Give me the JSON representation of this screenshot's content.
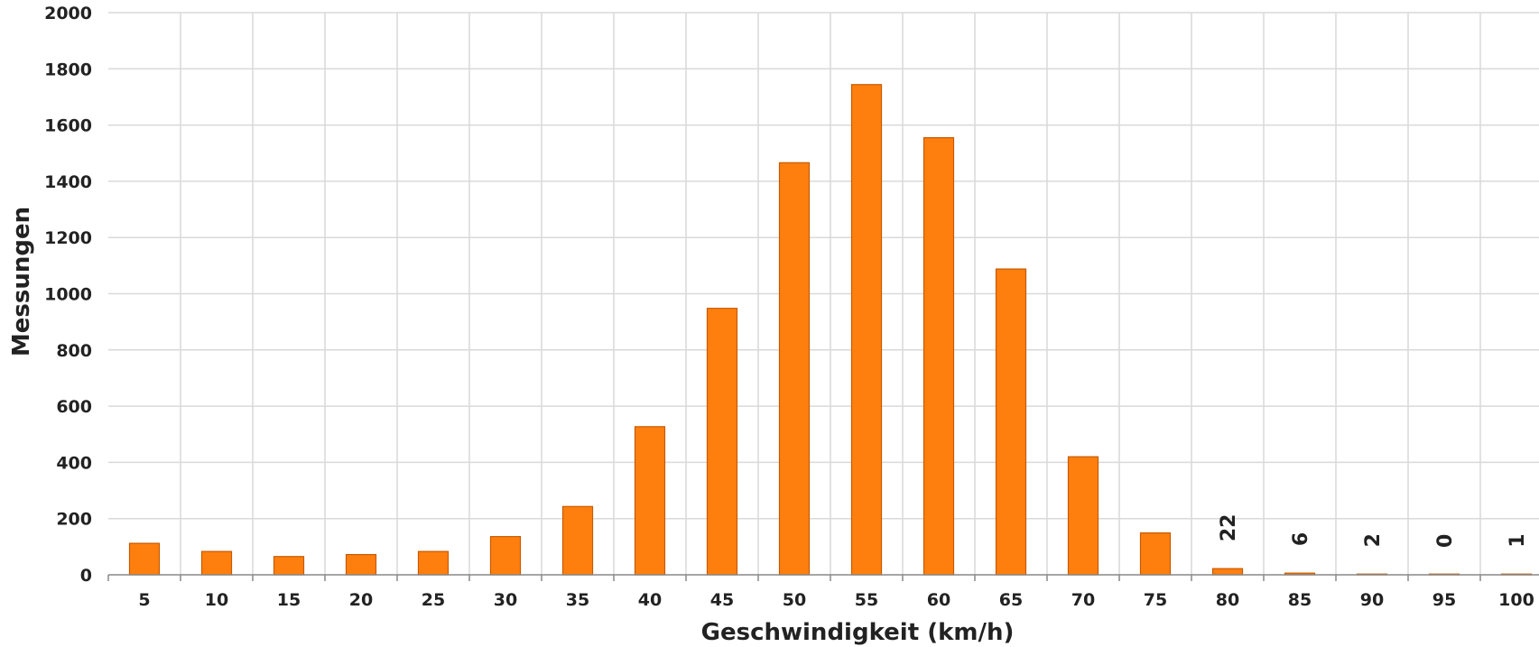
{
  "chart_data": {
    "type": "bar",
    "categories": [
      "5",
      "10",
      "15",
      "20",
      "25",
      "30",
      "35",
      "40",
      "45",
      "50",
      "55",
      "60",
      "65",
      "70",
      "75",
      "80",
      "85",
      "90",
      "95",
      "100"
    ],
    "values": [
      112,
      83,
      65,
      72,
      83,
      136,
      243,
      527,
      948,
      1466,
      1744,
      1555,
      1088,
      420,
      149,
      22,
      6,
      2,
      0,
      1
    ],
    "data_labels": [
      {
        "category": "80",
        "text": "22"
      },
      {
        "category": "85",
        "text": "6"
      },
      {
        "category": "90",
        "text": "2"
      },
      {
        "category": "95",
        "text": "0"
      },
      {
        "category": "100",
        "text": "1"
      }
    ],
    "xlabel": "Geschwindigkeit (km/h)",
    "ylabel": "Messungen",
    "ylim": [
      0,
      2000
    ],
    "yticks": [
      "0",
      "200",
      "400",
      "600",
      "800",
      "1000",
      "1200",
      "1400",
      "1600",
      "1800",
      "2000"
    ],
    "grid": true,
    "bar_color": "#ff7f0e",
    "bar_edge_color": "#c65a00"
  }
}
